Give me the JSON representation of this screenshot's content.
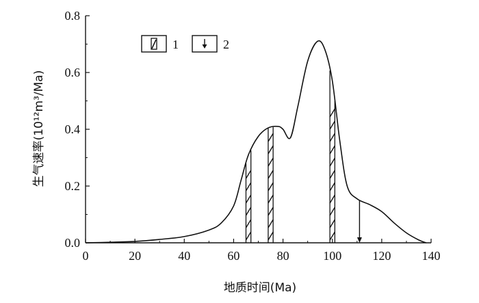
{
  "chart_data": {
    "type": "line",
    "xlabel": "地质时间(Ma)",
    "ylabel": "生气速率(10¹²m³/Ma)",
    "xlim": [
      0,
      140
    ],
    "ylim": [
      0,
      0.8
    ],
    "x_ticks": [
      "0",
      "20",
      "40",
      "60",
      "80",
      "100",
      "120",
      "140"
    ],
    "y_ticks": [
      "0.0",
      "0.2",
      "0.4",
      "0.6",
      "0.8"
    ],
    "legend": [
      {
        "symbol": "hatched-band",
        "label": "1"
      },
      {
        "symbol": "down-arrow",
        "label": "2"
      }
    ],
    "series": [
      {
        "x": [
          0,
          10,
          20,
          30,
          40,
          50,
          55,
          60,
          63,
          66,
          70,
          74,
          78,
          80,
          83,
          86,
          90,
          94,
          97,
          100,
          103,
          106,
          110,
          115,
          120,
          125,
          130,
          135,
          138
        ],
        "y": [
          0.0,
          0.002,
          0.005,
          0.012,
          0.022,
          0.045,
          0.07,
          0.13,
          0.22,
          0.31,
          0.375,
          0.405,
          0.41,
          0.4,
          0.37,
          0.48,
          0.64,
          0.71,
          0.68,
          0.57,
          0.36,
          0.2,
          0.155,
          0.135,
          0.11,
          0.07,
          0.035,
          0.01,
          0.0
        ]
      }
    ],
    "hatched_bands": [
      {
        "x_start": 65,
        "x_end": 67
      },
      {
        "x_start": 74,
        "x_end": 76
      },
      {
        "x_start": 99,
        "x_end": 101
      }
    ],
    "arrows": [
      {
        "x": 111,
        "y_from": 0.15,
        "y_to": 0.0
      }
    ]
  }
}
